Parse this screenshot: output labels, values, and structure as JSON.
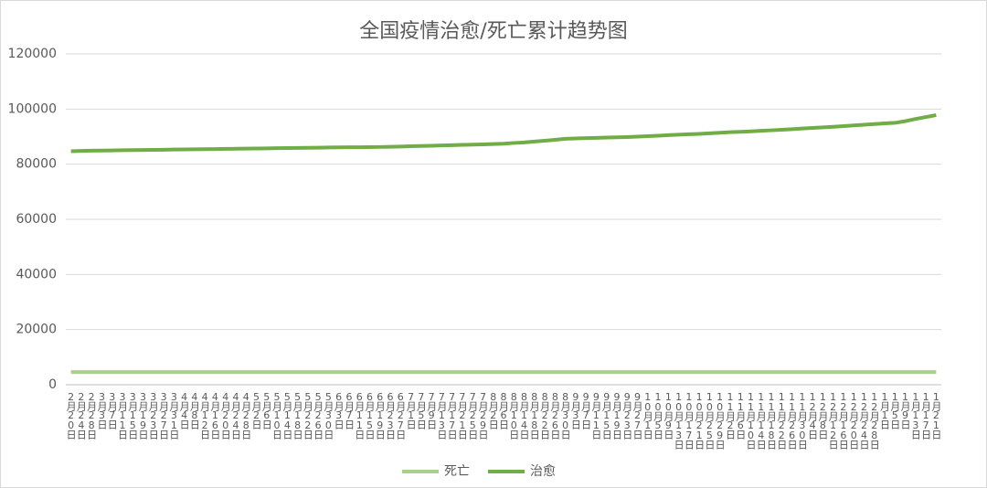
{
  "chart_data": {
    "type": "line",
    "title": "全国疫情治愈/死亡累计趋势图",
    "categories": [
      "2月20日",
      "2月24日",
      "2月28日",
      "3月3日",
      "3月7日",
      "3月11日",
      "3月15日",
      "3月19日",
      "3月23日",
      "3月27日",
      "3月31日",
      "4月4日",
      "4月8日",
      "4月12日",
      "4月16日",
      "4月20日",
      "4月24日",
      "4月28日",
      "5月2日",
      "5月6日",
      "5月10日",
      "5月14日",
      "5月18日",
      "5月22日",
      "5月26日",
      "5月30日",
      "6月3日",
      "6月7日",
      "6月11日",
      "6月15日",
      "6月19日",
      "6月23日",
      "6月27日",
      "7月1日",
      "7月5日",
      "7月9日",
      "7月13日",
      "7月17日",
      "7月21日",
      "7月25日",
      "7月29日",
      "8月2日",
      "8月6日",
      "8月10日",
      "8月14日",
      "8月18日",
      "8月22日",
      "8月26日",
      "8月30日",
      "9月3日",
      "9月7日",
      "9月11日",
      "9月15日",
      "9月19日",
      "9月23日",
      "9月27日",
      "10月1日",
      "10月5日",
      "10月9日",
      "10月13日",
      "10月17日",
      "10月21日",
      "10月25日",
      "10月29日",
      "11月2日",
      "11月6日",
      "11月10日",
      "11月14日",
      "11月18日",
      "11月22日",
      "11月26日",
      "11月30日",
      "12月4日",
      "12月8日",
      "12月12日",
      "12月16日",
      "12月20日",
      "12月24日",
      "12月28日",
      "1月1日",
      "1月5日",
      "1月9日",
      "1月13日",
      "1月17日",
      "1月21日"
    ],
    "series": [
      {
        "name": "死亡",
        "color": "#a9d18e",
        "values": [
          4600,
          4600,
          4600,
          4600,
          4600,
          4600,
          4600,
          4600,
          4600,
          4600,
          4600,
          4600,
          4600,
          4600,
          4600,
          4600,
          4600,
          4600,
          4600,
          4600,
          4600,
          4600,
          4600,
          4600,
          4600,
          4600,
          4600,
          4600,
          4600,
          4600,
          4600,
          4600,
          4600,
          4600,
          4600,
          4600,
          4600,
          4600,
          4600,
          4600,
          4600,
          4600,
          4600,
          4600,
          4600,
          4600,
          4600,
          4600,
          4600,
          4600,
          4600,
          4600,
          4600,
          4600,
          4600,
          4600,
          4600,
          4600,
          4600,
          4600,
          4600,
          4600,
          4600,
          4600,
          4600,
          4600,
          4600,
          4600,
          4600,
          4600,
          4600,
          4600,
          4600,
          4600,
          4600,
          4600,
          4600,
          4600,
          4600,
          4600,
          4600,
          4600,
          4600,
          4600,
          4600
        ]
      },
      {
        "name": "治愈",
        "color": "#70ad47",
        "values": [
          84700,
          84800,
          84900,
          84950,
          85000,
          85050,
          85100,
          85150,
          85200,
          85250,
          85300,
          85350,
          85400,
          85450,
          85500,
          85550,
          85600,
          85650,
          85700,
          85750,
          85800,
          85850,
          85900,
          85950,
          86000,
          86050,
          86100,
          86130,
          86160,
          86200,
          86250,
          86300,
          86400,
          86500,
          86600,
          86700,
          86800,
          86900,
          87000,
          87100,
          87200,
          87300,
          87450,
          87700,
          87900,
          88200,
          88500,
          88850,
          89200,
          89350,
          89450,
          89550,
          89650,
          89750,
          89850,
          90000,
          90150,
          90350,
          90550,
          90700,
          90850,
          91000,
          91200,
          91400,
          91600,
          91750,
          91900,
          92100,
          92300,
          92500,
          92700,
          92950,
          93150,
          93350,
          93550,
          93800,
          94050,
          94300,
          94550,
          94800,
          95000,
          95600,
          96400,
          97100,
          97800
        ]
      }
    ],
    "ylim": [
      0,
      120000
    ],
    "yticks": [
      0,
      20000,
      40000,
      60000,
      80000,
      100000,
      120000
    ],
    "grid": true,
    "legend": "bottom"
  }
}
